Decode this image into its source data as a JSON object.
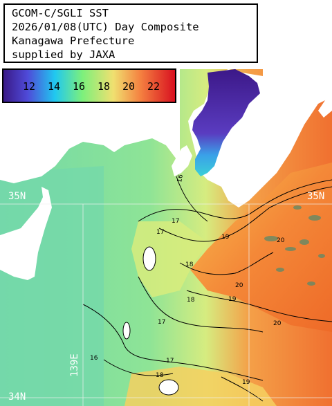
{
  "title": {
    "lines": [
      "GCOM-C/SGLI SST",
      "2026/01/08(UTC) Day Composite",
      "Kanagawa Prefecture",
      "supplied by JAXA"
    ]
  },
  "legend": {
    "ticks": [
      "12",
      "14",
      "16",
      "18",
      "20",
      "22"
    ],
    "colors": [
      "#3a1a88",
      "#4f4ad8",
      "#20c8f0",
      "#7cf07c",
      "#f0e070",
      "#f48040",
      "#d81020"
    ]
  },
  "grid_labels": {
    "lat_35_left": "35N",
    "lat_35_right": "35N",
    "lat_34": "34N",
    "lon_139": "139E"
  },
  "contour_labels": [
    "16",
    "17",
    "17",
    "18",
    "19",
    "20",
    "20",
    "19",
    "18",
    "17",
    "16",
    "17",
    "18",
    "19",
    "20"
  ],
  "colors": {
    "land": "#ffffff",
    "sea_cool": "#7ad89e",
    "sea_mid": "#a8ec88",
    "sea_warm": "#f07830",
    "bay_cold": "#4a2aa0"
  }
}
